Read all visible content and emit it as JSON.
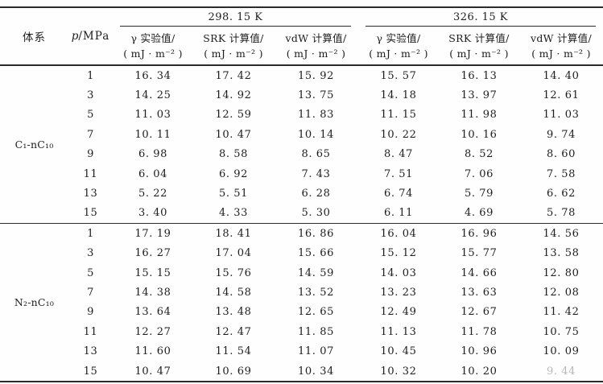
{
  "page": {
    "background": "#fefefe",
    "text_color": "#1d1d1d",
    "rule_color": "#2b2b2b"
  },
  "table": {
    "header": {
      "system_label": "体系",
      "pressure_symbol": "p",
      "pressure_unit": "/MPa",
      "temp_groups": [
        {
          "temp": "298.15 K",
          "subcols": [
            {
              "name": "γ 实验值/",
              "unit": "( mJ · m⁻² )"
            },
            {
              "name": "SRK 计算值/",
              "unit": "( mJ · m⁻² )"
            },
            {
              "name": "vdW 计算值/",
              "unit": "( mJ · m⁻² )"
            }
          ]
        },
        {
          "temp": "326.15 K",
          "subcols": [
            {
              "name": "γ 实验值/",
              "unit": "( mJ · m⁻² )"
            },
            {
              "name": "SRK 计算值/",
              "unit": "( mJ · m⁻² )"
            },
            {
              "name": "vdW 计算值/",
              "unit": "( mJ · m⁻² )"
            }
          ]
        }
      ]
    },
    "groups": [
      {
        "system": "C₁-nC₁₀",
        "rows": [
          {
            "p": "1",
            "values": [
              "16.34",
              "17.42",
              "15.92",
              "15.57",
              "16.13",
              "14.40"
            ]
          },
          {
            "p": "3",
            "values": [
              "14.25",
              "14.92",
              "13.75",
              "14.18",
              "13.97",
              "12.61"
            ]
          },
          {
            "p": "5",
            "values": [
              "11.03",
              "12.59",
              "11.83",
              "11.15",
              "11.98",
              "11.03"
            ]
          },
          {
            "p": "7",
            "values": [
              "10.11",
              "10.47",
              "10.14",
              "10.22",
              "10.16",
              "9.74"
            ]
          },
          {
            "p": "9",
            "values": [
              "6.98",
              "8.58",
              "8.65",
              "8.47",
              "8.52",
              "8.60"
            ]
          },
          {
            "p": "11",
            "values": [
              "6.04",
              "6.92",
              "7.43",
              "7.51",
              "7.06",
              "7.58"
            ]
          },
          {
            "p": "13",
            "values": [
              "5.22",
              "5.51",
              "6.28",
              "6.74",
              "5.79",
              "6.62"
            ]
          },
          {
            "p": "15",
            "values": [
              "3.40",
              "4.33",
              "5.30",
              "6.11",
              "4.69",
              "5.78"
            ]
          }
        ]
      },
      {
        "system": "N₂-nC₁₀",
        "rows": [
          {
            "p": "1",
            "values": [
              "17.19",
              "18.41",
              "16.86",
              "16.04",
              "16.96",
              "14.56"
            ]
          },
          {
            "p": "3",
            "values": [
              "16.27",
              "17.04",
              "15.66",
              "15.12",
              "15.77",
              "13.58"
            ]
          },
          {
            "p": "5",
            "values": [
              "15.15",
              "15.76",
              "14.59",
              "14.03",
              "14.66",
              "12.80"
            ]
          },
          {
            "p": "7",
            "values": [
              "14.38",
              "14.58",
              "13.52",
              "13.23",
              "13.63",
              "12.08"
            ]
          },
          {
            "p": "9",
            "values": [
              "13.64",
              "13.48",
              "12.65",
              "12.49",
              "12.67",
              "11.42"
            ]
          },
          {
            "p": "11",
            "values": [
              "12.27",
              "12.47",
              "11.85",
              "11.13",
              "11.78",
              "10.75"
            ]
          },
          {
            "p": "13",
            "values": [
              "11.60",
              "11.54",
              "11.07",
              "10.45",
              "10.96",
              "10.09"
            ]
          },
          {
            "p": "15",
            "values": [
              "10.47",
              "10.69",
              "10.34",
              "10.32",
              "10.20",
              "9.44"
            ]
          }
        ]
      }
    ],
    "faded_cell": [
      1,
      7,
      5
    ]
  }
}
